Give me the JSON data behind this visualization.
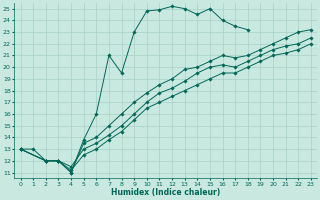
{
  "xlabel": "Humidex (Indice chaleur)",
  "ylabel": "",
  "bg_color": "#c8e8e0",
  "grid_color": "#a8d0c8",
  "line_color": "#006858",
  "xlim": [
    -0.5,
    23.5
  ],
  "ylim": [
    10.5,
    25.5
  ],
  "xticks": [
    0,
    1,
    2,
    3,
    4,
    5,
    6,
    7,
    8,
    9,
    10,
    11,
    12,
    13,
    14,
    15,
    16,
    17,
    18,
    19,
    20,
    21,
    22,
    23
  ],
  "yticks": [
    11,
    12,
    13,
    14,
    15,
    16,
    17,
    18,
    19,
    20,
    21,
    22,
    23,
    24,
    25
  ],
  "lines": [
    {
      "x": [
        0,
        1,
        2,
        3,
        4,
        5,
        6,
        7,
        8,
        9,
        10,
        11,
        12,
        13,
        14,
        15,
        16,
        17,
        18
      ],
      "y": [
        13,
        13,
        12,
        12,
        11,
        13.8,
        16,
        21,
        19.5,
        23,
        24.8,
        24.9,
        25.2,
        25,
        24.5,
        25,
        24,
        23.5,
        23.2
      ]
    },
    {
      "x": [
        0,
        2,
        3,
        4,
        5,
        6,
        7,
        8,
        9,
        10,
        11,
        12,
        13,
        14,
        15,
        16,
        17,
        18,
        19,
        20,
        21,
        22,
        23
      ],
      "y": [
        13,
        12,
        12,
        11,
        13.5,
        14,
        15,
        16,
        17,
        17.8,
        18.5,
        19,
        19.8,
        20,
        20.5,
        21,
        20.8,
        21,
        21.5,
        22,
        22.5,
        23,
        23.2
      ]
    },
    {
      "x": [
        0,
        2,
        3,
        4,
        5,
        6,
        7,
        8,
        9,
        10,
        11,
        12,
        13,
        14,
        15,
        16,
        17,
        18,
        19,
        20,
        21,
        22,
        23
      ],
      "y": [
        13,
        12,
        12,
        11.5,
        13,
        13.5,
        14.2,
        15,
        16,
        17,
        17.8,
        18.2,
        18.8,
        19.5,
        20,
        20.2,
        20,
        20.5,
        21,
        21.5,
        21.8,
        22,
        22.5
      ]
    },
    {
      "x": [
        0,
        2,
        3,
        4,
        5,
        6,
        7,
        8,
        9,
        10,
        11,
        12,
        13,
        14,
        15,
        16,
        17,
        18,
        19,
        20,
        21,
        22,
        23
      ],
      "y": [
        13,
        12,
        12,
        11.2,
        12.5,
        13,
        13.8,
        14.5,
        15.5,
        16.5,
        17,
        17.5,
        18,
        18.5,
        19,
        19.5,
        19.5,
        20,
        20.5,
        21,
        21.2,
        21.5,
        22
      ]
    }
  ]
}
